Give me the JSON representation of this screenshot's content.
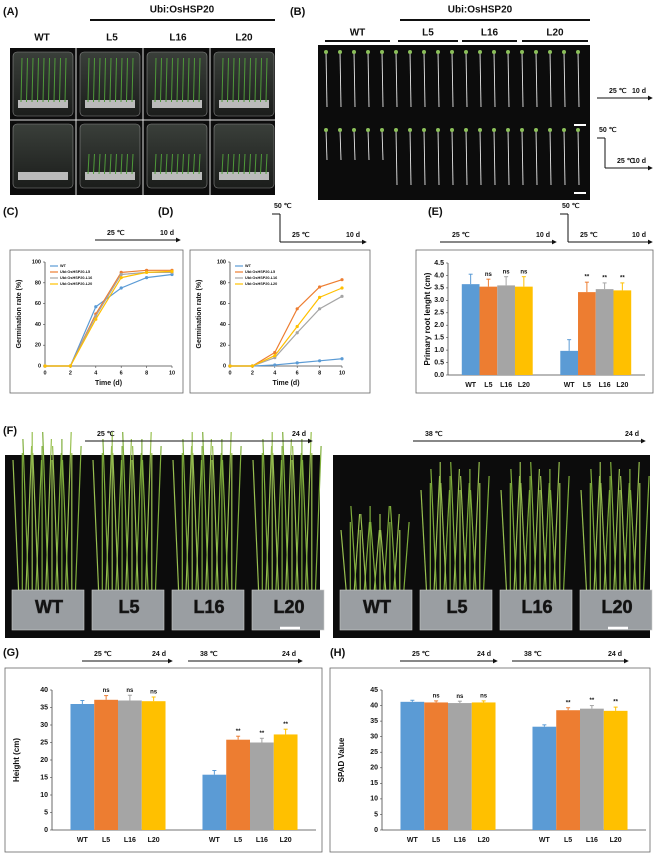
{
  "figure": {
    "panel_labels": [
      "(A)",
      "(B)",
      "(C)",
      "(D)",
      "(E)",
      "(F)",
      "(G)",
      "(H)"
    ],
    "a": {
      "header": "Ubi:OsHSP20",
      "columns": [
        "WT",
        "L5",
        "L16",
        "L20"
      ]
    },
    "b": {
      "header": "Ubi:OsHSP20",
      "columns": [
        "WT",
        "L5",
        "L16",
        "L20"
      ],
      "conditions": [
        {
          "temp": "25 ℃",
          "time": "10 d"
        },
        {
          "heat": "50 ℃",
          "temp": "25 ℃",
          "time": "10 d"
        }
      ]
    },
    "f": {
      "conditions": [
        {
          "temp": "25 ℃",
          "time": "24 d"
        },
        {
          "temp": "38 ℃",
          "time": "24 d"
        }
      ],
      "pots": [
        "WT",
        "L5",
        "L16",
        "L20"
      ]
    }
  },
  "chart_data": [
    {
      "type": "line",
      "conditions": [
        {
          "temp": "25 ℃",
          "time": "10 d"
        }
      ],
      "x_label": "Time (d)",
      "y_label": "Germination rate (%)",
      "x": [
        0,
        2,
        4,
        6,
        8,
        10
      ],
      "xlim": [
        0,
        10
      ],
      "xticks": [
        0,
        2,
        4,
        6,
        8,
        10
      ],
      "ylim": [
        0,
        100
      ],
      "yticks": [
        0,
        20,
        40,
        60,
        80,
        100
      ],
      "series": [
        {
          "name": "WT",
          "color": "#5b9bd5",
          "values": [
            0,
            0,
            57,
            75,
            85,
            88
          ]
        },
        {
          "name": "Ubi:OsHSP20-L5",
          "color": "#ed7d31",
          "values": [
            0,
            0,
            50,
            90,
            92,
            92
          ]
        },
        {
          "name": "Ubi:OsHSP20-L16",
          "color": "#a5a5a5",
          "values": [
            0,
            0,
            48,
            88,
            90,
            90
          ]
        },
        {
          "name": "Ubi:OsHSP20-L20",
          "color": "#ffc000",
          "values": [
            0,
            0,
            45,
            85,
            90,
            91
          ]
        }
      ]
    },
    {
      "type": "line",
      "conditions": [
        {
          "heat": "50 ℃",
          "temp": "25 ℃",
          "time": "10 d"
        }
      ],
      "x_label": "Time (d)",
      "y_label": "Germination rate (%)",
      "x": [
        0,
        2,
        4,
        6,
        8,
        10
      ],
      "xlim": [
        0,
        10
      ],
      "xticks": [
        0,
        2,
        4,
        6,
        8,
        10
      ],
      "ylim": [
        0,
        100
      ],
      "yticks": [
        0,
        20,
        40,
        60,
        80,
        100
      ],
      "series": [
        {
          "name": "WT",
          "color": "#5b9bd5",
          "values": [
            0,
            0,
            1,
            3,
            5,
            7
          ]
        },
        {
          "name": "Ubi:OsHSP20-L5",
          "color": "#ed7d31",
          "values": [
            0,
            0,
            13,
            55,
            76,
            83
          ]
        },
        {
          "name": "Ubi:OsHSP20-L16",
          "color": "#a5a5a5",
          "values": [
            0,
            0,
            8,
            32,
            55,
            67
          ]
        },
        {
          "name": "Ubi:OsHSP20-L20",
          "color": "#ffc000",
          "values": [
            0,
            0,
            10,
            38,
            66,
            75
          ]
        }
      ]
    },
    {
      "type": "bar",
      "conditions": [
        {
          "temp": "25 ℃",
          "time": "10 d"
        },
        {
          "heat": "50 ℃",
          "temp": "25 ℃",
          "time": "10 d"
        }
      ],
      "y_label": "Primary root lenght (cm)",
      "categories": [
        "WT",
        "L5",
        "L16",
        "L20",
        "WT",
        "L5",
        "L16",
        "L20"
      ],
      "values": [
        3.65,
        3.55,
        3.6,
        3.55,
        0.97,
        3.33,
        3.45,
        3.4
      ],
      "errors": [
        0.4,
        0.3,
        0.35,
        0.4,
        0.45,
        0.4,
        0.25,
        0.3
      ],
      "significance": [
        null,
        "ns",
        "ns",
        "ns",
        null,
        "**",
        "**",
        "**"
      ],
      "colors": [
        "#5b9bd5",
        "#ed7d31",
        "#a5a5a5",
        "#ffc000"
      ],
      "ylim": [
        0,
        4.5
      ],
      "yticks": [
        {
          "value": 0,
          "label": "0.0"
        },
        {
          "value": 0.5,
          "label": "0.5"
        },
        {
          "value": 1,
          "label": "1.0"
        },
        {
          "value": 1.5,
          "label": "1.5"
        },
        {
          "value": 2,
          "label": "2.0"
        },
        {
          "value": 2.5,
          "label": "2.5"
        },
        {
          "value": 3,
          "label": "3.0"
        },
        {
          "value": 3.5,
          "label": "3.5"
        },
        {
          "value": 4,
          "label": "4.0"
        },
        {
          "value": 4.5,
          "label": "4.5"
        }
      ]
    },
    {
      "type": "bar",
      "conditions": [
        {
          "temp": "25 ℃",
          "time": "24 d"
        },
        {
          "temp": "38 ℃",
          "time": "24 d"
        }
      ],
      "y_label": "Height (cm)",
      "categories": [
        "WT",
        "L5",
        "L16",
        "L20",
        "WT",
        "L5",
        "L16",
        "L20"
      ],
      "values": [
        36,
        37.2,
        37,
        36.8,
        15.8,
        25.8,
        25,
        27.3
      ],
      "errors": [
        1,
        1.2,
        1.5,
        1.2,
        1.2,
        1,
        1.2,
        1.5
      ],
      "significance": [
        null,
        "ns",
        "ns",
        "ns",
        null,
        "**",
        "**",
        "**"
      ],
      "colors": [
        "#5b9bd5",
        "#ed7d31",
        "#a5a5a5",
        "#ffc000"
      ],
      "ylim": [
        0,
        40
      ],
      "yticks": [
        0,
        5,
        10,
        15,
        20,
        25,
        30,
        35,
        40
      ]
    },
    {
      "type": "bar",
      "conditions": [
        {
          "temp": "25 ℃",
          "time": "24 d"
        },
        {
          "temp": "38 ℃",
          "time": "24 d"
        }
      ],
      "y_label": "SPAD Value",
      "categories": [
        "WT",
        "L5",
        "L16",
        "L20",
        "WT",
        "L5",
        "L16",
        "L20"
      ],
      "values": [
        41.2,
        41,
        40.8,
        41,
        33.2,
        38.5,
        39,
        38.3
      ],
      "errors": [
        0.5,
        0.5,
        0.6,
        0.5,
        0.6,
        0.8,
        1,
        1.2
      ],
      "significance": [
        null,
        "ns",
        "ns",
        "ns",
        null,
        "**",
        "**",
        "**"
      ],
      "colors": [
        "#5b9bd5",
        "#ed7d31",
        "#a5a5a5",
        "#ffc000"
      ],
      "ylim": [
        0,
        45
      ],
      "yticks": [
        0,
        5,
        10,
        15,
        20,
        25,
        30,
        35,
        40,
        45
      ]
    }
  ]
}
